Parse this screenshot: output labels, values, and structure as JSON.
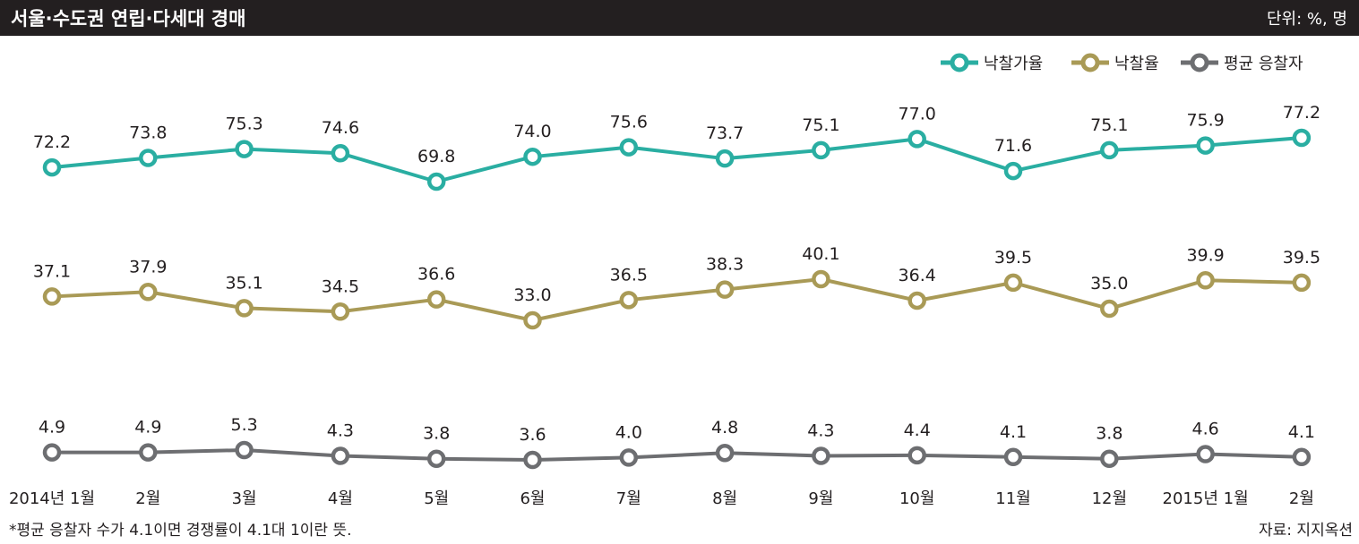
{
  "header": {
    "title": "서울·수도권 연립·다세대 경매",
    "unit": "단위: %, 명"
  },
  "footer": {
    "note": "*평균 응찰자 수가 4.1이면 경쟁률이 4.1대 1이란 뜻.",
    "source": "자료: 지지옥션"
  },
  "colors": {
    "title_bar": "#231f20",
    "series": [
      "#2aaea2",
      "#a99a56",
      "#6d6e71"
    ]
  },
  "chart_data": {
    "type": "line",
    "title": "서울·수도권 연립·다세대 경매",
    "unit": "단위: %, 명",
    "categories": [
      "2014년 1월",
      "2월",
      "3월",
      "4월",
      "5월",
      "6월",
      "7월",
      "8월",
      "9월",
      "10월",
      "11월",
      "12월",
      "2015년 1월",
      "2월"
    ],
    "grid": false,
    "legend": "top-right",
    "series": [
      {
        "name": "낙찰가율",
        "values": [
          72.2,
          73.8,
          75.3,
          74.6,
          69.8,
          74.0,
          75.6,
          73.7,
          75.1,
          77.0,
          71.6,
          75.1,
          75.9,
          77.2
        ],
        "labels": [
          "72.2",
          "73.8",
          "75.3",
          "74.6",
          "69.8",
          "74.0",
          "75.6",
          "73.7",
          "75.1",
          "77.0",
          "71.6",
          "75.1",
          "75.9",
          "77.2"
        ]
      },
      {
        "name": "낙찰율",
        "values": [
          37.1,
          37.9,
          35.1,
          34.5,
          36.6,
          33.0,
          36.5,
          38.3,
          40.1,
          36.4,
          39.5,
          35.0,
          39.9,
          39.5
        ],
        "labels": [
          "37.1",
          "37.9",
          "35.1",
          "34.5",
          "36.6",
          "33.0",
          "36.5",
          "38.3",
          "40.1",
          "36.4",
          "39.5",
          "35.0",
          "39.9",
          "39.5"
        ]
      },
      {
        "name": "평균 응찰자",
        "values": [
          4.9,
          4.9,
          5.3,
          4.3,
          3.8,
          3.6,
          4.0,
          4.8,
          4.3,
          4.4,
          4.1,
          3.8,
          4.6,
          4.1
        ],
        "labels": [
          "4.9",
          "4.9",
          "5.3",
          "4.3",
          "3.8",
          "3.6",
          "4.0",
          "4.8",
          "4.3",
          "4.4",
          "4.1",
          "3.8",
          "4.6",
          "4.1"
        ]
      }
    ]
  }
}
